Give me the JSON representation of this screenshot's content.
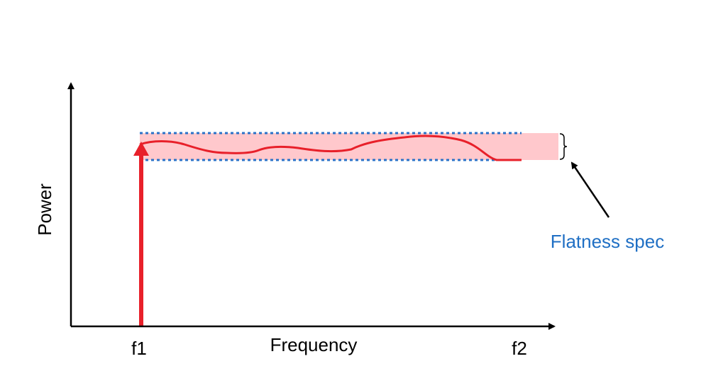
{
  "axes": {
    "y_label": "Power",
    "x_label": "Frequency",
    "x_ticks": {
      "start": "f1",
      "end": "f2"
    }
  },
  "annotation": {
    "label": "Flatness spec"
  },
  "colors": {
    "axis": "#000000",
    "signal": "#e8202a",
    "band": "#ffc8cc",
    "spec_line": "#2a72c8",
    "annotation_text": "#1f6fc4"
  }
}
